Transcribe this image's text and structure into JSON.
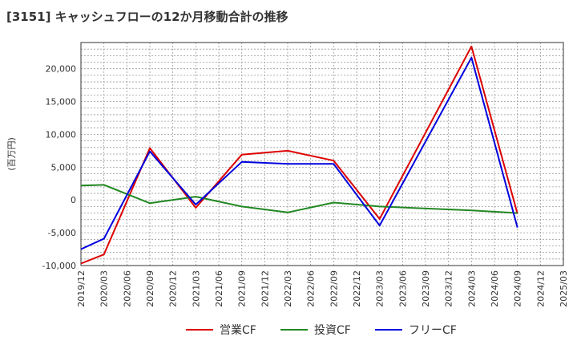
{
  "chart_data": {
    "type": "line",
    "title": "[3151]  キャッシュフローの12か月移動合計の推移",
    "ylabel": "(百万円)",
    "xlabel": "",
    "ylim": [
      -10000,
      24000
    ],
    "yticks": [
      -10000,
      -5000,
      0,
      5000,
      10000,
      15000,
      20000
    ],
    "ytick_labels": [
      "-10,000",
      "-5,000",
      "0",
      "5,000",
      "10,000",
      "15,000",
      "20,000"
    ],
    "categories": [
      "2019/12",
      "2020/03",
      "2020/06",
      "2020/09",
      "2020/12",
      "2021/03",
      "2021/06",
      "2021/09",
      "2021/12",
      "2022/03",
      "2022/06",
      "2022/09",
      "2022/12",
      "2023/03",
      "2023/06",
      "2023/09",
      "2023/12",
      "2024/03",
      "2024/06",
      "2024/09",
      "2024/12",
      "2025/03"
    ],
    "grid": true,
    "legend_position": "bottom",
    "series": [
      {
        "name": "営業CF",
        "color": "#dd0000",
        "values": [
          -9700,
          -8300,
          null,
          7900,
          null,
          -1200,
          null,
          6900,
          null,
          7500,
          null,
          6000,
          null,
          -2900,
          null,
          null,
          null,
          23400,
          null,
          -2100,
          null,
          null
        ]
      },
      {
        "name": "投資CF",
        "color": "#228822",
        "values": [
          2200,
          2300,
          null,
          -500,
          null,
          500,
          null,
          -1000,
          null,
          -1900,
          null,
          -400,
          null,
          -1000,
          null,
          null,
          null,
          -1600,
          null,
          -2000,
          null,
          null
        ]
      },
      {
        "name": "フリーCF",
        "color": "#0000dd",
        "values": [
          -7500,
          -5900,
          null,
          7400,
          null,
          -700,
          null,
          5800,
          null,
          5500,
          null,
          5500,
          null,
          -3900,
          null,
          null,
          null,
          21700,
          null,
          -4200,
          null,
          null
        ]
      }
    ]
  }
}
